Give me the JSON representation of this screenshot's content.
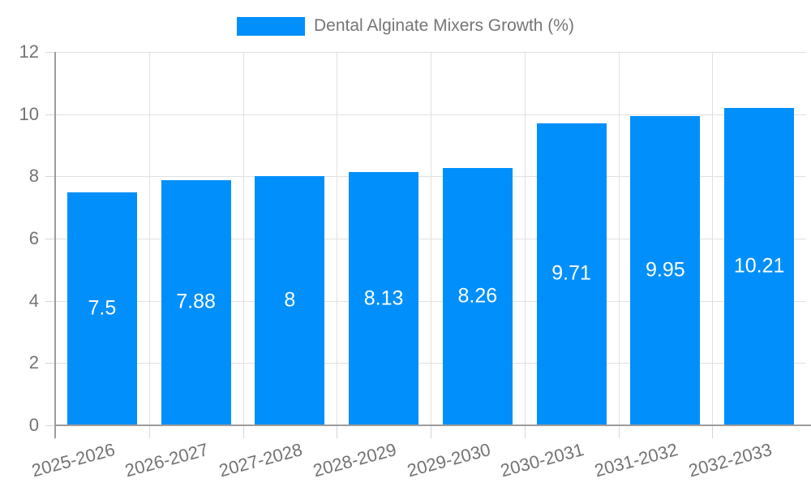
{
  "legend": {
    "label": "Dental Alginate Mixers Growth (%)"
  },
  "chart_data": {
    "type": "bar",
    "title": "Dental Alginate Mixers Growth (%)",
    "categories": [
      "2025-2026",
      "2026-2027",
      "2027-2028",
      "2028-2029",
      "2029-2030",
      "2030-2031",
      "2031-2032",
      "2032-2033"
    ],
    "values": [
      7.5,
      7.88,
      8,
      8.13,
      8.26,
      9.71,
      9.95,
      10.21
    ],
    "value_labels": [
      "7.5",
      "7.88",
      "8",
      "8.13",
      "8.26",
      "9.71",
      "9.95",
      "10.21"
    ],
    "xlabel": "",
    "ylabel": "",
    "ylim": [
      0,
      12
    ],
    "yticks": [
      0,
      2,
      4,
      6,
      8,
      10,
      12
    ],
    "grid": true,
    "legend_position": "top",
    "colors": {
      "bar": "#008FFB",
      "value_label": "#ffffff",
      "axis_text": "#737373",
      "legend_text": "#757575",
      "grid_line": "#e0e0e0",
      "tick_line": "#d6d6d6",
      "axis_line": "#9c9c9c"
    }
  }
}
